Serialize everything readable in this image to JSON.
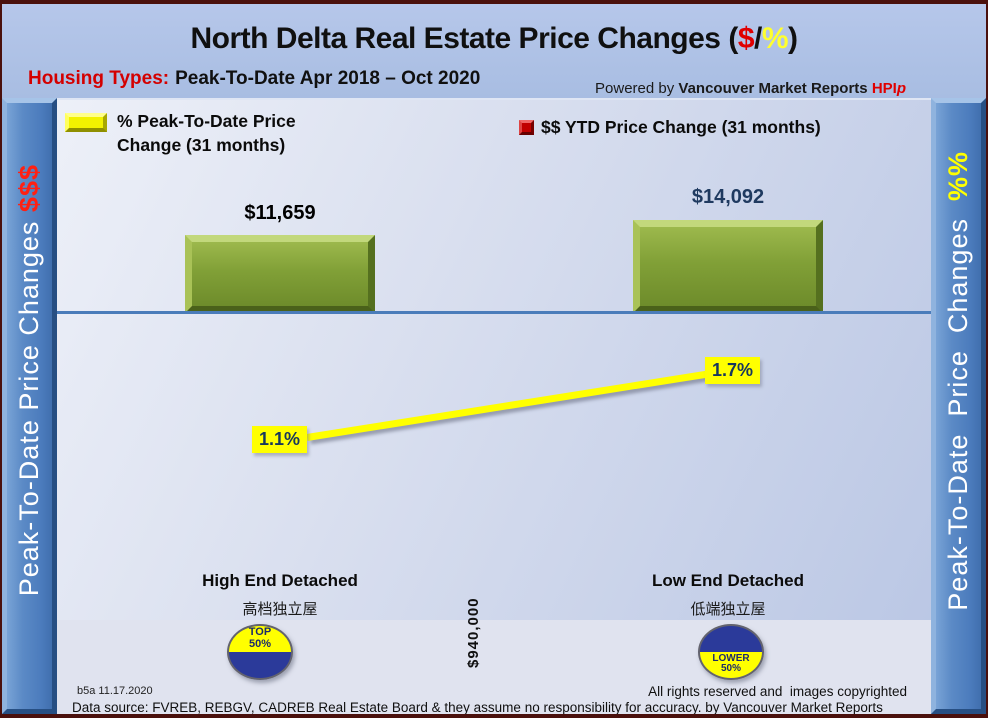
{
  "header": {
    "title": {
      "prefix": "North Delta Real Estate Price Changes (",
      "dollar": "$",
      "slash": "/",
      "percent": "%",
      "suffix": ")"
    },
    "subtitle_label": "Housing Types:",
    "subtitle_text": "Peak-To-Date Apr 2018 – Oct 2020",
    "powered_by": "Powered by ",
    "powered_brand": "Vancouver Market Reports ",
    "powered_hpi": "HPI",
    "powered_hpi_p": "p"
  },
  "sidebar_left": {
    "label": "Peak-To-Date Price Changes ",
    "suffix": "$$$"
  },
  "sidebar_right": {
    "label": "Peak-To-Date  Price  Changes  ",
    "suffix": "%%"
  },
  "legend": {
    "pct_label": "% Peak-To-Date Price Change (31 months)",
    "dollar_label": "$$ YTD Price Change (31 months)"
  },
  "chart_data": {
    "type": "bar",
    "title": "North Delta Real Estate Price Changes ($/%)",
    "subtitle": "Housing Types: Peak-To-Date Apr 2018 – Oct 2020",
    "categories": [
      "High End Detached",
      "Low End Detached"
    ],
    "categories_cn": [
      "高档独立屋",
      "低端独立屋"
    ],
    "series": [
      {
        "name": "$$ YTD Price Change (31 months)",
        "type": "bar",
        "values": [
          11659,
          14092
        ],
        "labels": [
          "$11,659",
          "$14,092"
        ]
      },
      {
        "name": "% Peak-To-Date Price Change (31 months)",
        "type": "line",
        "values": [
          1.1,
          1.7
        ],
        "labels": [
          "1.1%",
          "1.7%"
        ]
      }
    ],
    "annotation_price": "$940,000",
    "legend_position": "top",
    "grid": false,
    "bar_color": "#81a037",
    "line_color": "#ffff00"
  },
  "badges": {
    "left": {
      "line1": "TOP",
      "line2": "50%"
    },
    "right": {
      "line1": "LOWER",
      "line2": "50%"
    }
  },
  "footer": {
    "version": "b5a 11.17.2020",
    "rights": "All rights reserved and  images copyrighted",
    "source": "Data source: FVREB, REBGV, CADREB Real Estate Board & they assume no responsibility for accuracy. by Vancouver Market Reports"
  },
  "colors": {
    "accent_red": "#e00000",
    "accent_yellow": "#ffff00",
    "navy": "#1f3864",
    "sidebar_blue": "#5b8ac6",
    "axis_blue": "#4a7cba"
  }
}
